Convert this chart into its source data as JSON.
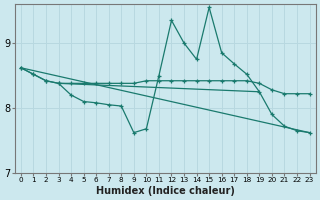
{
  "xlabel": "Humidex (Indice chaleur)",
  "background_color": "#cce8ee",
  "grid_color": "#b8d8e0",
  "line_color": "#1a7a6e",
  "xlim": [
    -0.5,
    23.5
  ],
  "ylim": [
    7.0,
    9.6
  ],
  "yticks": [
    7,
    8,
    9
  ],
  "xtick_labels": [
    "0",
    "1",
    "2",
    "3",
    "4",
    "5",
    "6",
    "7",
    "8",
    "9",
    "10",
    "11",
    "12",
    "13",
    "14",
    "15",
    "16",
    "17",
    "18",
    "19",
    "20",
    "21",
    "22",
    "23"
  ],
  "line_spike": {
    "x": [
      0,
      1,
      2,
      3,
      4,
      5,
      6,
      7,
      8,
      9,
      10,
      11,
      12,
      13,
      14,
      15,
      16,
      17,
      18,
      19,
      20,
      21,
      22,
      23
    ],
    "y": [
      8.62,
      8.52,
      8.42,
      8.38,
      8.2,
      8.1,
      8.08,
      8.05,
      8.03,
      7.62,
      7.68,
      8.5,
      9.35,
      9.0,
      8.75,
      9.55,
      8.85,
      8.68,
      8.52,
      8.25,
      7.9,
      7.72,
      7.65,
      7.62
    ]
  },
  "line_flat1": {
    "x": [
      0,
      1,
      2,
      3,
      4,
      5,
      6,
      7,
      8,
      9,
      10,
      11,
      12,
      13,
      14,
      15,
      16,
      17,
      18,
      19,
      20,
      21,
      22,
      23
    ],
    "y": [
      8.62,
      8.52,
      8.42,
      8.38,
      8.38,
      8.38,
      8.38,
      8.38,
      8.38,
      8.38,
      8.42,
      8.42,
      8.42,
      8.42,
      8.42,
      8.42,
      8.42,
      8.42,
      8.42,
      8.38,
      8.28,
      8.22,
      8.22,
      8.22
    ]
  },
  "line_diag": {
    "x": [
      0,
      23
    ],
    "y": [
      8.62,
      7.62
    ]
  },
  "line_mid": {
    "x": [
      3,
      19
    ],
    "y": [
      8.38,
      8.25
    ]
  }
}
